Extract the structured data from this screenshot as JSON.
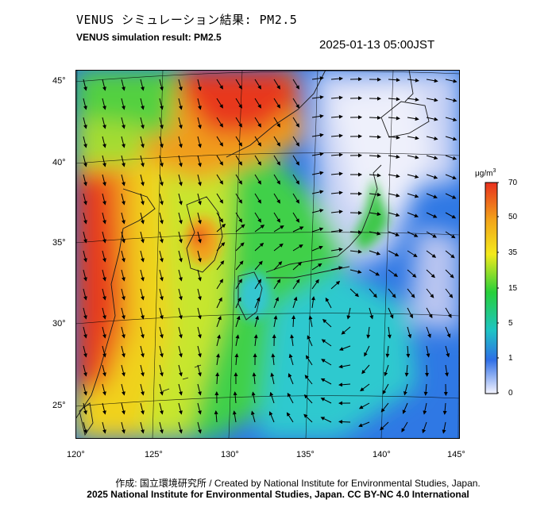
{
  "title_ja": "VENUS シミュレーション結果: PM2.5",
  "title_en": "VENUS simulation result: PM2.5",
  "timestamp": "2025-01-13 05:00JST",
  "lat_labels": [
    "45°",
    "40°",
    "35°",
    "30°",
    "25°"
  ],
  "lon_labels": [
    "120°",
    "125°",
    "130°",
    "135°",
    "140°",
    "145°"
  ],
  "colorbar": {
    "unit": "μg/m",
    "unit_sup": "3",
    "labels": [
      "70",
      "50",
      "35",
      "15",
      "5",
      "1",
      "0"
    ],
    "colors": [
      "#e8301e",
      "#f2a51a",
      "#f3ea1c",
      "#27d03a",
      "#1ec4c4",
      "#2f6fe6",
      "#f4f4ff"
    ]
  },
  "credit_ja_en": "作成: 国立環境研究所 / Created by National Institute for Environmental Studies, Japan.",
  "copyright": "2025 National Institute for Environmental Studies, Japan. CC BY-NC 4.0 International"
}
